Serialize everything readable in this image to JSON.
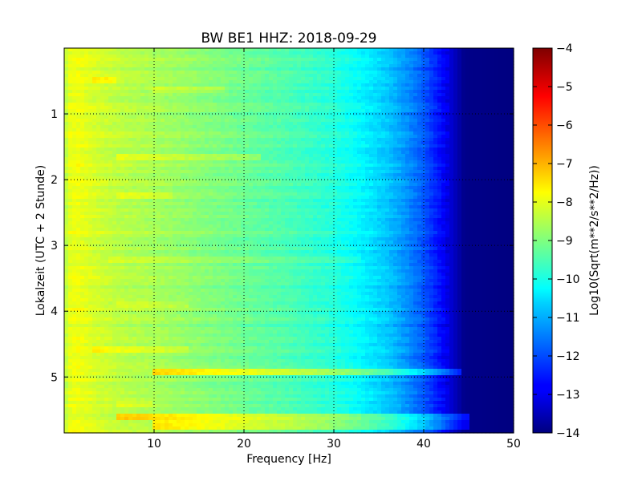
{
  "chart_data": {
    "type": "heatmap",
    "title": "BW BE1 HHZ: 2018-09-29",
    "xlabel": "Frequency [Hz]",
    "ylabel": "Lokalzeit (UTC + 2 Stunde)",
    "colorbar_label": "Log10(Sqrt(m**2/s**2/Hz))",
    "colormap": "jet",
    "xlim": [
      0,
      50
    ],
    "ylim": [
      5.85,
      0
    ],
    "clim": [
      -14,
      -4
    ],
    "x_ticks": [
      "10",
      "20",
      "30",
      "40",
      "50"
    ],
    "y_ticks": [
      "1",
      "2",
      "3",
      "4",
      "5"
    ],
    "colorbar_ticks": [
      "-4",
      "-5",
      "-6",
      "-7",
      "-8",
      "-9",
      "-10",
      "-11",
      "-12",
      "-13",
      "-14"
    ],
    "grid": true,
    "spectrum_profile": {
      "frequency_hz": [
        0,
        0.5,
        1.5,
        3,
        6,
        10,
        15,
        20,
        25,
        30,
        33,
        36,
        38,
        40,
        42,
        43.5,
        44.5,
        50
      ],
      "log10_amplitude": [
        -8.6,
        -8.0,
        -7.9,
        -8.1,
        -8.4,
        -8.6,
        -8.9,
        -9.2,
        -9.5,
        -9.9,
        -10.3,
        -10.8,
        -11.3,
        -11.9,
        -12.7,
        -13.4,
        -13.9,
        -14.0
      ]
    },
    "bright_bands": [
      {
        "time_h": 0.5,
        "f_start": 3,
        "f_end": 6,
        "delta": 0.5
      },
      {
        "time_h": 0.62,
        "f_start": 10,
        "f_end": 18,
        "delta": 0.35
      },
      {
        "time_h": 1.65,
        "f_start": 6,
        "f_end": 22,
        "delta": 0.5
      },
      {
        "time_h": 2.25,
        "f_start": 6,
        "f_end": 12,
        "delta": 0.35
      },
      {
        "time_h": 3.2,
        "f_start": 5,
        "f_end": 33,
        "delta": 0.3
      },
      {
        "time_h": 3.9,
        "f_start": 6,
        "f_end": 14,
        "delta": 0.35
      },
      {
        "time_h": 4.6,
        "f_start": 3,
        "f_end": 14,
        "delta": 0.35
      },
      {
        "time_h": 4.93,
        "f_start": 10,
        "f_end": 44,
        "delta": 1.2
      },
      {
        "time_h": 5.4,
        "f_start": 6,
        "f_end": 10,
        "delta": 0.35
      },
      {
        "time_h": 5.62,
        "f_start": 6,
        "f_end": 45,
        "delta": 1.3
      },
      {
        "time_h": 5.7,
        "f_start": 10,
        "f_end": 45,
        "delta": 1.0
      },
      {
        "time_h": 5.78,
        "f_start": 10,
        "f_end": 45,
        "delta": 1.0
      }
    ]
  }
}
